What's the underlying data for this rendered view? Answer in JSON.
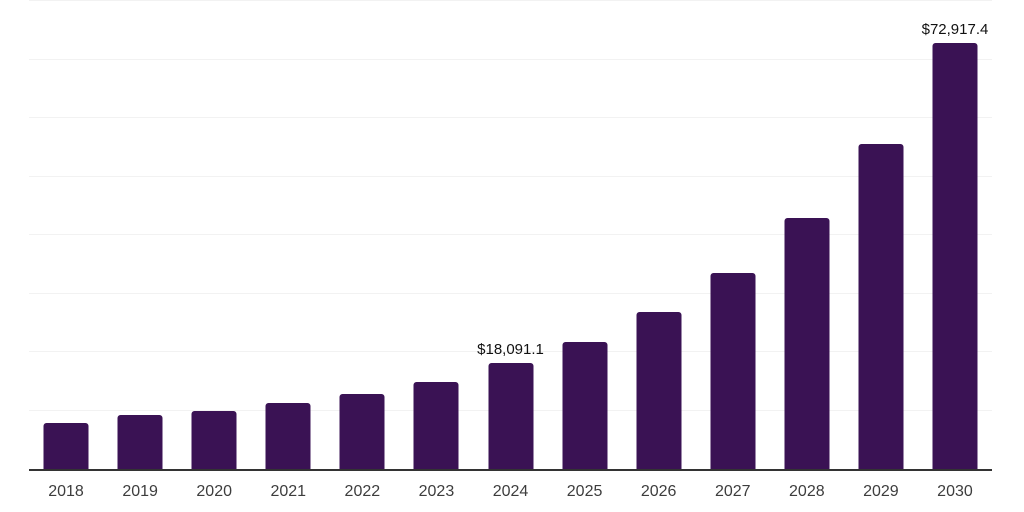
{
  "chart_data": {
    "type": "bar",
    "title": "",
    "xlabel": "",
    "ylabel": "",
    "categories": [
      "2018",
      "2019",
      "2020",
      "2021",
      "2022",
      "2023",
      "2024",
      "2025",
      "2026",
      "2027",
      "2028",
      "2029",
      "2030"
    ],
    "values": [
      7900,
      9200,
      9950,
      11300,
      12800,
      14900,
      18091.1,
      21800,
      26900,
      33500,
      43000,
      55600,
      72917.4
    ],
    "bar_labels": [
      "",
      "",
      "",
      "",
      "",
      "",
      "$18,091.1",
      "",
      "",
      "",
      "",
      "",
      "$72,917.4"
    ],
    "ylim": [
      0,
      80000
    ],
    "gridline_interval": 10000,
    "grid": "horizontal",
    "legend_position": "none",
    "y_axis_tick_labels_visible": false,
    "colors": {
      "bar": "#3a1254",
      "gridline": "#f2f2f2",
      "axis_line": "#333333",
      "tick_label": "#3d3d3d",
      "bar_label": "#111111",
      "background": "#ffffff"
    }
  }
}
